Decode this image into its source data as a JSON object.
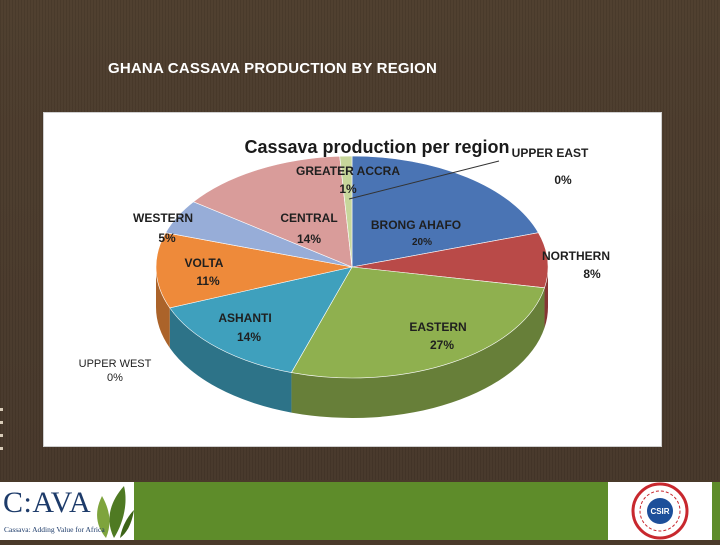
{
  "slide": {
    "title": "GHANA CASSAVA PRODUCTION BY REGION"
  },
  "chart_data": {
    "type": "pie",
    "title": "Cassava production per region",
    "three_d": true,
    "slices": [
      {
        "label": "BRONG  AHAFO",
        "value": 20,
        "value_label": "20%",
        "color": "#4a74b4"
      },
      {
        "label": "NORTHERN",
        "value": 8,
        "value_label": "8%",
        "color": "#b94a48"
      },
      {
        "label": "EASTERN",
        "value": 27,
        "value_label": "27%",
        "color": "#8fb04f"
      },
      {
        "label": "ASHANTI",
        "value": 14,
        "value_label": "14%",
        "color": "#3fa0bd"
      },
      {
        "label": "VOLTA",
        "value": 11,
        "value_label": "11%",
        "color": "#ee8a3a"
      },
      {
        "label": "WESTERN",
        "value": 5,
        "value_label": "5%",
        "color": "#97add8"
      },
      {
        "label": "CENTRAL",
        "value": 14,
        "value_label": "14%",
        "color": "#d99c9a"
      },
      {
        "label": "GREATER  ACCRA",
        "value": 1,
        "value_label": "1%",
        "color": "#c7d69b"
      },
      {
        "label": "UPPER EAST",
        "value": 0,
        "value_label": "0%",
        "color": "#ffffff"
      },
      {
        "label": "UPPER WEST",
        "value": 0,
        "value_label": "0%",
        "color": "#ffffff"
      }
    ]
  },
  "footer": {
    "cava_brand": "C:AVA",
    "cava_tagline": "Cassava: Adding Value for Africa",
    "csir_text": "CSIR"
  }
}
